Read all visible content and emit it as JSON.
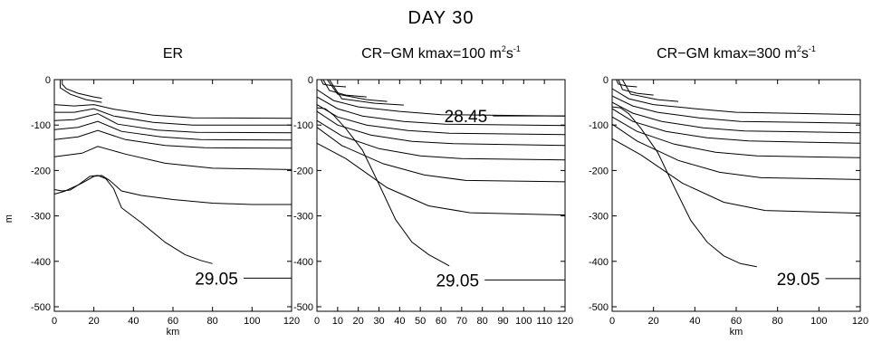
{
  "figure_title": "DAY 30",
  "chart_data": [
    {
      "type": "line",
      "title": "ER",
      "title_superscripts": [],
      "xlabel": "km",
      "ylabel": "m",
      "xlim": [
        0,
        120
      ],
      "ylim": [
        -510,
        0
      ],
      "xticks": [
        "0",
        "20",
        "40",
        "60",
        "80",
        "100",
        "120"
      ],
      "yticks": [
        "0",
        "-100",
        "-200",
        "-300",
        "-400",
        "-500"
      ],
      "contour_labels": [
        {
          "text": "29.05",
          "x": 82,
          "y": -437
        }
      ],
      "series": [
        {
          "values": [
            [
              4,
              0
            ],
            [
              4,
              -10
            ],
            [
              6,
              -20
            ],
            [
              12,
              -30
            ],
            [
              20,
              -38
            ],
            [
              24,
              -41
            ]
          ]
        },
        {
          "values": [
            [
              3,
              0
            ],
            [
              3,
              -18
            ],
            [
              8,
              -32
            ],
            [
              16,
              -44
            ],
            [
              24,
              -50
            ]
          ]
        },
        {
          "values": [
            [
              0,
              -55
            ],
            [
              10,
              -58
            ],
            [
              20,
              -55
            ],
            [
              30,
              -65
            ],
            [
              50,
              -78
            ],
            [
              70,
              -84
            ],
            [
              120,
              -85
            ]
          ]
        },
        {
          "values": [
            [
              0,
              -72
            ],
            [
              10,
              -72
            ],
            [
              20,
              -64
            ],
            [
              30,
              -80
            ],
            [
              50,
              -94
            ],
            [
              70,
              -100
            ],
            [
              120,
              -100
            ]
          ]
        },
        {
          "values": [
            [
              0,
              -90
            ],
            [
              10,
              -88
            ],
            [
              22,
              -75
            ],
            [
              32,
              -98
            ],
            [
              52,
              -111
            ],
            [
              72,
              -116
            ],
            [
              120,
              -117
            ]
          ]
        },
        {
          "values": [
            [
              0,
              -110
            ],
            [
              12,
              -105
            ],
            [
              22,
              -92
            ],
            [
              34,
              -114
            ],
            [
              54,
              -126
            ],
            [
              74,
              -132
            ],
            [
              120,
              -133
            ]
          ]
        },
        {
          "values": [
            [
              0,
              -132
            ],
            [
              12,
              -126
            ],
            [
              22,
              -112
            ],
            [
              36,
              -132
            ],
            [
              56,
              -145
            ],
            [
              76,
              -150
            ],
            [
              120,
              -151
            ]
          ]
        },
        {
          "values": [
            [
              0,
              -170
            ],
            [
              14,
              -162
            ],
            [
              22,
              -147
            ],
            [
              36,
              -164
            ],
            [
              56,
              -184
            ],
            [
              80,
              -195
            ],
            [
              120,
              -198
            ]
          ]
        },
        {
          "values": [
            [
              0,
              -242
            ],
            [
              4,
              -245
            ],
            [
              8,
              -243
            ],
            [
              12,
              -232
            ],
            [
              16,
              -223
            ],
            [
              20,
              -213
            ],
            [
              24,
              -211
            ],
            [
              28,
              -222
            ],
            [
              34,
              -245
            ],
            [
              44,
              -255
            ],
            [
              60,
              -264
            ],
            [
              80,
              -272
            ],
            [
              100,
              -275
            ],
            [
              120,
              -275
            ]
          ]
        },
        {
          "values": [
            [
              0,
              -252
            ],
            [
              5,
              -246
            ],
            [
              12,
              -232
            ],
            [
              18,
              -213
            ],
            [
              22,
              -211
            ],
            [
              26,
              -218
            ],
            [
              30,
              -240
            ],
            [
              34,
              -282
            ],
            [
              44,
              -315
            ],
            [
              56,
              -358
            ],
            [
              66,
              -385
            ],
            [
              74,
              -398
            ],
            [
              80,
              -405
            ]
          ]
        }
      ]
    },
    {
      "type": "line",
      "title": "CR−GM kmax=100 m",
      "title_superscripts": [
        "2",
        "s",
        "-1"
      ],
      "xlabel": "",
      "ylabel": "",
      "xlim": [
        0,
        120
      ],
      "ylim": [
        -510,
        0
      ],
      "xticks": [
        "0",
        "10",
        "20",
        "30",
        "40",
        "50",
        "60",
        "70",
        "80",
        "90",
        "100",
        "110",
        "120"
      ],
      "yticks": [
        "0",
        "-100",
        "-200",
        "-300",
        "-400",
        "-500"
      ],
      "contour_labels": [
        {
          "text": "28.45",
          "x": 72,
          "y": -80
        },
        {
          "text": "29.05",
          "x": 68,
          "y": -441
        }
      ],
      "series": [
        {
          "values": [
            [
              2,
              0
            ],
            [
              3,
              -10
            ],
            [
              8,
              -14
            ],
            [
              14,
              -16
            ]
          ]
        },
        {
          "values": [
            [
              3,
              0
            ],
            [
              6,
              -24
            ],
            [
              14,
              -34
            ],
            [
              24,
              -38
            ]
          ]
        },
        {
          "values": [
            [
              5,
              0
            ],
            [
              10,
              -32
            ],
            [
              24,
              -44
            ],
            [
              34,
              -48
            ]
          ]
        },
        {
          "values": [
            [
              6,
              0
            ],
            [
              12,
              -42
            ],
            [
              28,
              -52
            ],
            [
              42,
              -56
            ]
          ]
        },
        {
          "values": [
            [
              0,
              -22
            ],
            [
              8,
              -46
            ],
            [
              20,
              -60
            ],
            [
              40,
              -70
            ],
            [
              60,
              -77
            ],
            [
              120,
              -80
            ]
          ]
        },
        {
          "values": [
            [
              0,
              -38
            ],
            [
              10,
              -64
            ],
            [
              22,
              -80
            ],
            [
              42,
              -92
            ],
            [
              62,
              -98
            ],
            [
              120,
              -101
            ]
          ]
        },
        {
          "values": [
            [
              0,
              -55
            ],
            [
              10,
              -82
            ],
            [
              24,
              -100
            ],
            [
              44,
              -112
            ],
            [
              64,
              -118
            ],
            [
              120,
              -121
            ]
          ]
        },
        {
          "values": [
            [
              0,
              -70
            ],
            [
              10,
              -100
            ],
            [
              26,
              -122
            ],
            [
              46,
              -136
            ],
            [
              66,
              -141
            ],
            [
              120,
              -145
            ]
          ]
        },
        {
          "values": [
            [
              0,
              -90
            ],
            [
              12,
              -124
            ],
            [
              30,
              -152
            ],
            [
              50,
              -168
            ],
            [
              70,
              -174
            ],
            [
              120,
              -177
            ]
          ]
        },
        {
          "values": [
            [
              0,
              -105
            ],
            [
              12,
              -145
            ],
            [
              32,
              -185
            ],
            [
              52,
              -210
            ],
            [
              72,
              -222
            ],
            [
              120,
              -225
            ]
          ]
        },
        {
          "values": [
            [
              0,
              -140
            ],
            [
              14,
              -174
            ],
            [
              34,
              -238
            ],
            [
              54,
              -278
            ],
            [
              74,
              -293
            ],
            [
              120,
              -298
            ]
          ]
        },
        {
          "values": [
            [
              0,
              -62
            ],
            [
              4,
              -64
            ],
            [
              8,
              -78
            ],
            [
              14,
              -108
            ],
            [
              22,
              -155
            ],
            [
              30,
              -230
            ],
            [
              38,
              -308
            ],
            [
              46,
              -358
            ],
            [
              54,
              -385
            ],
            [
              60,
              -400
            ],
            [
              64,
              -410
            ]
          ]
        }
      ]
    },
    {
      "type": "line",
      "title": "CR−GM kmax=300 m",
      "title_superscripts": [
        "2",
        "s",
        "-1"
      ],
      "xlabel": "km",
      "ylabel": "",
      "xlim": [
        0,
        120
      ],
      "ylim": [
        -510,
        0
      ],
      "xticks": [
        "0",
        "20",
        "40",
        "60",
        "80",
        "100",
        "120"
      ],
      "yticks": [
        "0",
        "-100",
        "-200",
        "-300",
        "-400",
        "-500"
      ],
      "contour_labels": [
        {
          "text": "29.05",
          "x": 90,
          "y": -438
        }
      ],
      "series": [
        {
          "values": [
            [
              2,
              0
            ],
            [
              3,
              -10
            ],
            [
              7,
              -14
            ],
            [
              12,
              -16
            ]
          ]
        },
        {
          "values": [
            [
              3,
              0
            ],
            [
              5,
              -22
            ],
            [
              12,
              -30
            ],
            [
              20,
              -34
            ]
          ]
        },
        {
          "values": [
            [
              5,
              0
            ],
            [
              9,
              -32
            ],
            [
              22,
              -44
            ],
            [
              32,
              -48
            ]
          ]
        },
        {
          "values": [
            [
              0,
              -20
            ],
            [
              8,
              -42
            ],
            [
              20,
              -55
            ],
            [
              40,
              -64
            ],
            [
              60,
              -72
            ],
            [
              120,
              -77
            ]
          ]
        },
        {
          "values": [
            [
              0,
              -36
            ],
            [
              10,
              -58
            ],
            [
              22,
              -72
            ],
            [
              42,
              -84
            ],
            [
              62,
              -92
            ],
            [
              120,
              -96
            ]
          ]
        },
        {
          "values": [
            [
              0,
              -50
            ],
            [
              10,
              -74
            ],
            [
              24,
              -92
            ],
            [
              44,
              -106
            ],
            [
              64,
              -113
            ],
            [
              120,
              -117
            ]
          ]
        },
        {
          "values": [
            [
              0,
              -64
            ],
            [
              10,
              -92
            ],
            [
              26,
              -114
            ],
            [
              46,
              -128
            ],
            [
              66,
              -135
            ],
            [
              120,
              -140
            ]
          ]
        },
        {
          "values": [
            [
              0,
              -82
            ],
            [
              12,
              -114
            ],
            [
              30,
              -142
            ],
            [
              50,
              -160
            ],
            [
              70,
              -168
            ],
            [
              120,
              -172
            ]
          ]
        },
        {
          "values": [
            [
              0,
              -98
            ],
            [
              12,
              -135
            ],
            [
              32,
              -178
            ],
            [
              52,
              -204
            ],
            [
              72,
              -216
            ],
            [
              120,
              -220
            ]
          ]
        },
        {
          "values": [
            [
              0,
              -130
            ],
            [
              14,
              -166
            ],
            [
              34,
              -228
            ],
            [
              54,
              -270
            ],
            [
              74,
              -288
            ],
            [
              120,
              -294
            ]
          ]
        },
        {
          "values": [
            [
              0,
              -60
            ],
            [
              4,
              -62
            ],
            [
              8,
              -75
            ],
            [
              14,
              -108
            ],
            [
              22,
              -160
            ],
            [
              30,
              -236
            ],
            [
              38,
              -310
            ],
            [
              46,
              -358
            ],
            [
              54,
              -388
            ],
            [
              62,
              -405
            ],
            [
              70,
              -412
            ]
          ]
        }
      ]
    }
  ]
}
